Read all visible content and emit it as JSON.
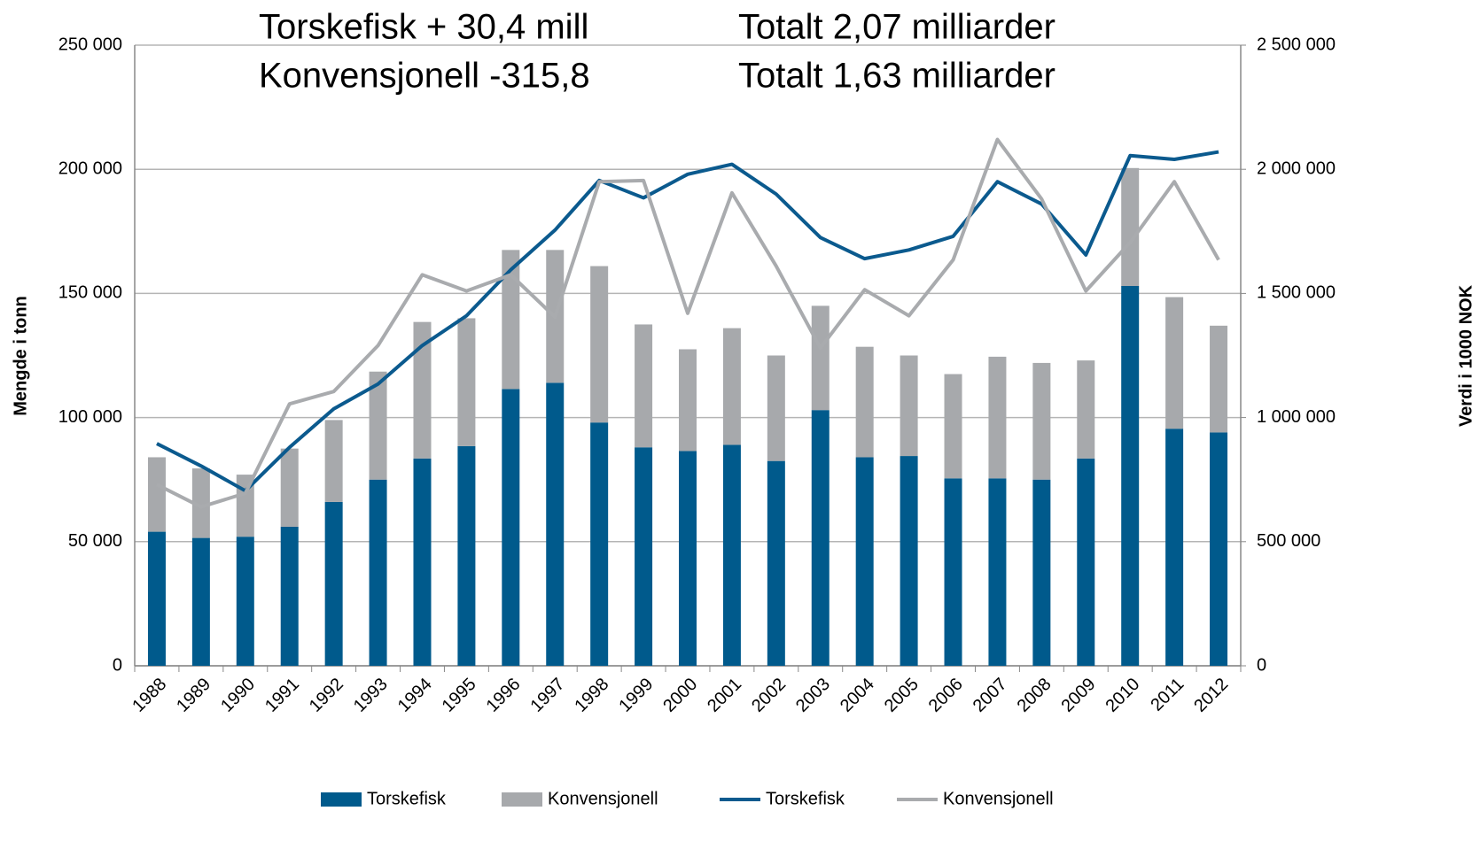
{
  "chart_data": {
    "type": "bar",
    "stacked": true,
    "annotations": [
      "Torskefisk + 30,4 mill",
      "Konvensjonell -315,8",
      "Totalt 2,07 milliarder",
      "Totalt 1,63 milliarder"
    ],
    "ylabel": "Mengde i tonn",
    "y2label": "Verdi i 1000 NOK",
    "categories": [
      "1988",
      "1989",
      "1990",
      "1991",
      "1992",
      "1993",
      "1994",
      "1995",
      "1996",
      "1997",
      "1998",
      "1999",
      "2000",
      "2001",
      "2002",
      "2003",
      "2004",
      "2005",
      "2006",
      "2007",
      "2008",
      "2009",
      "2010",
      "2011",
      "2012"
    ],
    "series": [
      {
        "name": "Torskefisk",
        "type": "bar",
        "color": "#005a8c",
        "values": [
          54000,
          51500,
          52000,
          56000,
          66000,
          75000,
          83500,
          88500,
          111500,
          114000,
          98000,
          88000,
          86500,
          89000,
          82500,
          103000,
          84000,
          84500,
          75500,
          75500,
          75000,
          83500,
          153000,
          95500,
          94000
        ]
      },
      {
        "name": "Konvensjonell",
        "type": "bar",
        "color": "#a7a9ac",
        "values": [
          30000,
          28000,
          25000,
          31500,
          33000,
          43500,
          55000,
          51500,
          56000,
          53500,
          63000,
          49500,
          41000,
          47000,
          42500,
          42000,
          44500,
          40500,
          42000,
          49000,
          47000,
          39500,
          47500,
          53000,
          43000
        ]
      },
      {
        "name": "Torskefisk",
        "type": "line",
        "axis": "y2",
        "color": "#0b5a8e",
        "values": [
          895000,
          805000,
          705000,
          880000,
          1035000,
          1135000,
          1290000,
          1410000,
          1595000,
          1755000,
          1955000,
          1885000,
          1980000,
          2020000,
          1900000,
          1725000,
          1640000,
          1675000,
          1730000,
          1950000,
          1860000,
          1655000,
          2055000,
          2040000,
          2070000
        ]
      },
      {
        "name": "Konvensjonell",
        "type": "line",
        "axis": "y2",
        "color": "#a9abae",
        "values": [
          730000,
          640000,
          695000,
          1055000,
          1105000,
          1290000,
          1575000,
          1510000,
          1575000,
          1405000,
          1950000,
          1955000,
          1420000,
          1905000,
          1610000,
          1280000,
          1515000,
          1410000,
          1635000,
          2120000,
          1880000,
          1510000,
          1705000,
          1950000,
          1635000
        ]
      }
    ],
    "ylim": [
      0,
      250000
    ],
    "yticks": [
      0,
      {
        "value": 50000,
        "label": "50 000"
      },
      {
        "value": 100000,
        "label": "100 000"
      },
      {
        "value": 150000,
        "label": "150 000"
      },
      {
        "value": 200000,
        "label": "200 000"
      },
      {
        "value": 250000,
        "label": "250 000"
      }
    ],
    "y2lim": [
      0,
      2500000
    ],
    "y2ticks": [
      0,
      {
        "value": 500000,
        "label": "500 000"
      },
      {
        "value": 1000000,
        "label": "1 000 000"
      },
      {
        "value": 1500000,
        "label": "1 500 000"
      },
      {
        "value": 2000000,
        "label": "2 000 000"
      },
      {
        "value": 2500000,
        "label": "2 500 000"
      }
    ],
    "grid": true,
    "legend": "bottom"
  }
}
